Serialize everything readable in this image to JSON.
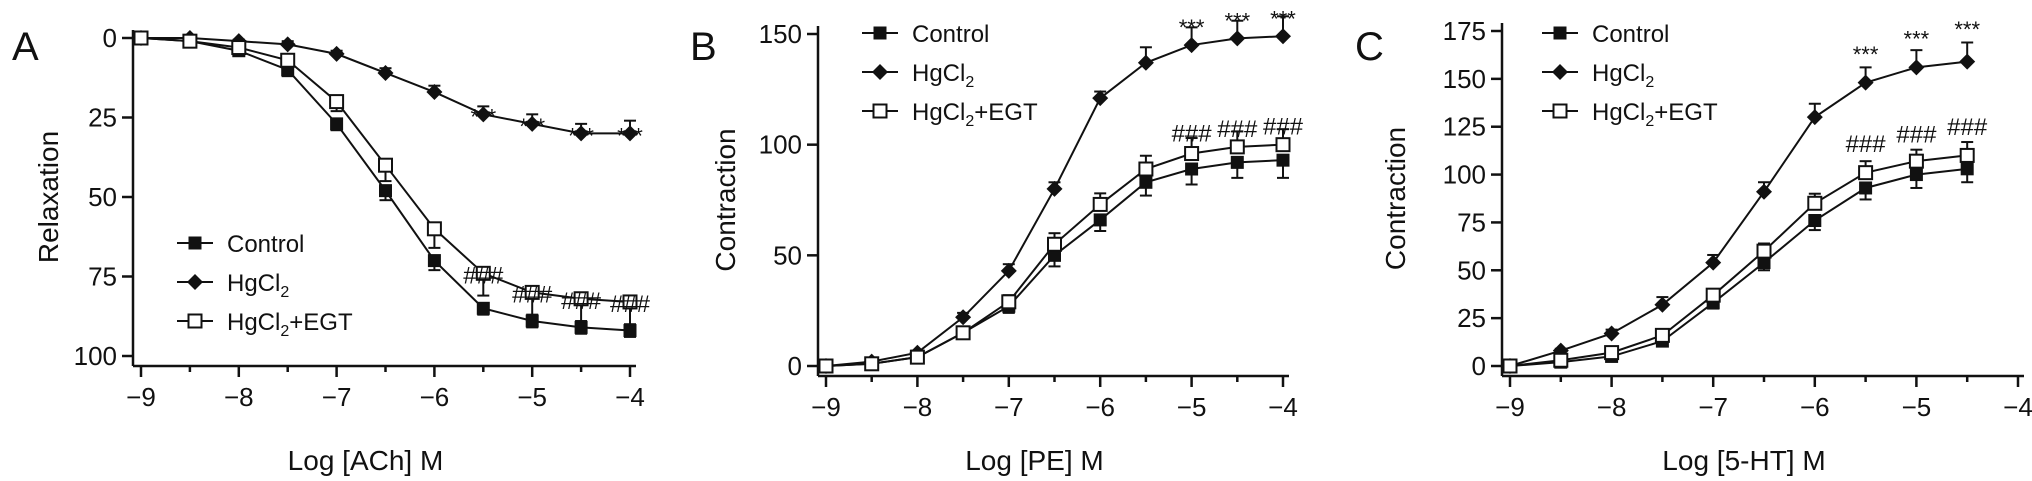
{
  "chart_data": [
    {
      "type": "line",
      "panel_label": "A",
      "xlabel": "Log [ACh] M",
      "ylabel": "Relaxation",
      "x": [
        -9,
        -8.5,
        -8,
        -7.5,
        -7,
        -6.5,
        -6,
        -5.5,
        -5,
        -4.5,
        -4
      ],
      "xlim": [
        -9,
        -4
      ],
      "ylim": [
        0,
        100
      ],
      "y_reversed": true,
      "xticks": [
        "-9",
        "-8",
        "-7",
        "-6",
        "-5",
        "-4"
      ],
      "yticks": [
        "0",
        "25",
        "50",
        "75",
        "100"
      ],
      "legend_position": "bottom-left",
      "series": [
        {
          "name": "Control",
          "marker": "filled-square",
          "values": [
            0,
            1,
            4,
            10,
            27,
            48,
            70,
            85,
            89,
            91,
            92
          ],
          "errors": [
            0,
            0.5,
            1,
            2,
            2,
            3,
            3,
            2,
            2,
            2,
            2
          ]
        },
        {
          "name": "HgCl2",
          "marker": "filled-diamond",
          "values": [
            0,
            0,
            1,
            2,
            5,
            11,
            17,
            24,
            27,
            30,
            30
          ],
          "errors": [
            0,
            0.5,
            0.5,
            1,
            1,
            1.5,
            2,
            2.5,
            3,
            3,
            4
          ]
        },
        {
          "name": "HgCl2+EGT",
          "marker": "open-square",
          "values": [
            0,
            1,
            3,
            7,
            20,
            40,
            60,
            74,
            80,
            82,
            83
          ],
          "errors": [
            0,
            0.5,
            1,
            2,
            3,
            5,
            6,
            7,
            7,
            7,
            7
          ]
        }
      ],
      "annotations": [
        {
          "text": "***",
          "x": -5.5,
          "y": 24
        },
        {
          "text": "***",
          "x": -5,
          "y": 27
        },
        {
          "text": "***",
          "x": -4.5,
          "y": 30
        },
        {
          "text": "***",
          "x": -4,
          "y": 30
        },
        {
          "text": "###",
          "x": -5.5,
          "y": 74
        },
        {
          "text": "###",
          "x": -5,
          "y": 80
        },
        {
          "text": "###",
          "x": -4.5,
          "y": 82
        },
        {
          "text": "###",
          "x": -4,
          "y": 83
        }
      ]
    },
    {
      "type": "line",
      "panel_label": "B",
      "xlabel": "Log [PE] M",
      "ylabel": "Contraction",
      "x": [
        -9,
        -8.5,
        -8,
        -7.5,
        -7,
        -6.5,
        -6,
        -5.5,
        -5,
        -4.5,
        -4
      ],
      "xlim": [
        -9,
        -4
      ],
      "ylim": [
        0,
        150
      ],
      "y_reversed": false,
      "xticks": [
        "-9",
        "-8",
        "-7",
        "-6",
        "-5",
        "-4"
      ],
      "yticks": [
        "0",
        "50",
        "100",
        "150"
      ],
      "legend_position": "top-left",
      "series": [
        {
          "name": "Control",
          "marker": "filled-square",
          "values": [
            0,
            1,
            4,
            15,
            27,
            50,
            66,
            83,
            89,
            92,
            93
          ],
          "errors": [
            0,
            0.5,
            1,
            2,
            3,
            5,
            5,
            6,
            7,
            7,
            8
          ]
        },
        {
          "name": "HgCl2",
          "marker": "filled-diamond",
          "values": [
            0,
            2,
            6,
            22,
            43,
            80,
            121,
            137,
            145,
            148,
            149
          ],
          "errors": [
            0,
            1,
            1,
            2,
            3,
            3,
            3,
            7,
            8,
            8,
            9
          ]
        },
        {
          "name": "HgCl2+EGT",
          "marker": "open-square",
          "values": [
            0,
            1,
            4,
            15,
            29,
            55,
            73,
            89,
            96,
            99,
            100
          ],
          "errors": [
            0,
            0.5,
            1,
            2,
            3,
            5,
            5,
            6,
            7,
            7,
            7
          ]
        }
      ],
      "annotations": [
        {
          "text": "***",
          "x": -5,
          "y": 154
        },
        {
          "text": "***",
          "x": -4.5,
          "y": 157
        },
        {
          "text": "***",
          "x": -4,
          "y": 158
        },
        {
          "text": "###",
          "x": -5,
          "y": 106
        },
        {
          "text": "###",
          "x": -4.5,
          "y": 108
        },
        {
          "text": "###",
          "x": -4,
          "y": 109
        }
      ]
    },
    {
      "type": "line",
      "panel_label": "C",
      "xlabel": "Log [5-HT] M",
      "ylabel": "Contraction",
      "x": [
        -9,
        -8.5,
        -8,
        -7.5,
        -7,
        -6.5,
        -6,
        -5.5,
        -5,
        -4.5
      ],
      "xlim": [
        -9,
        -4
      ],
      "ylim": [
        0,
        175
      ],
      "y_reversed": false,
      "xticks": [
        "-9",
        "-8",
        "-7",
        "-6",
        "-5",
        "-4"
      ],
      "yticks": [
        "0",
        "25",
        "50",
        "75",
        "100",
        "125",
        "150",
        "175"
      ],
      "legend_position": "top-left",
      "series": [
        {
          "name": "Control",
          "marker": "filled-square",
          "values": [
            0,
            2,
            5,
            13,
            33,
            54,
            76,
            93,
            100,
            103
          ],
          "errors": [
            0,
            0.5,
            1,
            2,
            3,
            4,
            5,
            6,
            7,
            7
          ]
        },
        {
          "name": "HgCl2",
          "marker": "filled-diamond",
          "values": [
            0,
            8,
            17,
            32,
            54,
            91,
            130,
            148,
            156,
            159
          ],
          "errors": [
            0,
            1,
            2,
            4,
            4,
            5,
            7,
            8,
            9,
            10
          ]
        },
        {
          "name": "HgCl2+EGT",
          "marker": "open-square",
          "values": [
            0,
            3,
            7,
            16,
            37,
            60,
            85,
            101,
            107,
            110
          ],
          "errors": [
            0,
            1,
            1,
            2,
            3,
            4,
            5,
            6,
            6,
            7
          ]
        }
      ],
      "annotations": [
        {
          "text": "***",
          "x": -5.5,
          "y": 164
        },
        {
          "text": "***",
          "x": -5,
          "y": 172
        },
        {
          "text": "***",
          "x": -4.5,
          "y": 177
        },
        {
          "text": "###",
          "x": -5.5,
          "y": 117
        },
        {
          "text": "###",
          "x": -5,
          "y": 122
        },
        {
          "text": "###",
          "x": -4.5,
          "y": 126
        }
      ]
    }
  ]
}
